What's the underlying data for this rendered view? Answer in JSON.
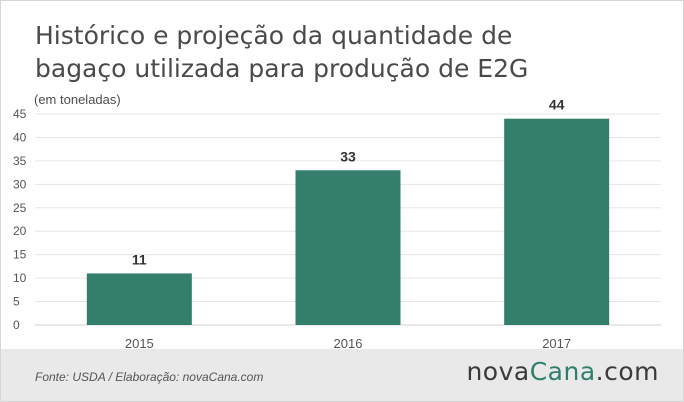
{
  "header": {
    "title_line1": "Histórico e projeção da quantidade de",
    "title_line2": "bagaço utilizada para produção de E2G",
    "subtitle": "(em toneladas)"
  },
  "footer": {
    "source": "Fonte:  USDA / Elaboração:  novaCana.com",
    "logo_part1": "nova",
    "logo_part2": "Cana",
    "logo_part3": ".com"
  },
  "colors": {
    "bar": "#347e6c",
    "grid": "#e6e6e6",
    "axis_text": "#555555",
    "label_text": "#333333",
    "logo_accent": "#2e7f6b"
  },
  "chart_data": {
    "type": "bar",
    "title": "Histórico e projeção da quantidade de bagaço utilizada para produção de E2G",
    "subtitle": "(em toneladas)",
    "categories": [
      "2015",
      "2016",
      "2017"
    ],
    "values": [
      11,
      33,
      44
    ],
    "data_labels": [
      "11",
      "33",
      "44"
    ],
    "ylim": [
      0,
      45
    ],
    "yticks": [
      0,
      5,
      10,
      15,
      20,
      25,
      30,
      35,
      40,
      45
    ],
    "grid": true,
    "legend": "none",
    "xlabel": "",
    "ylabel": ""
  }
}
